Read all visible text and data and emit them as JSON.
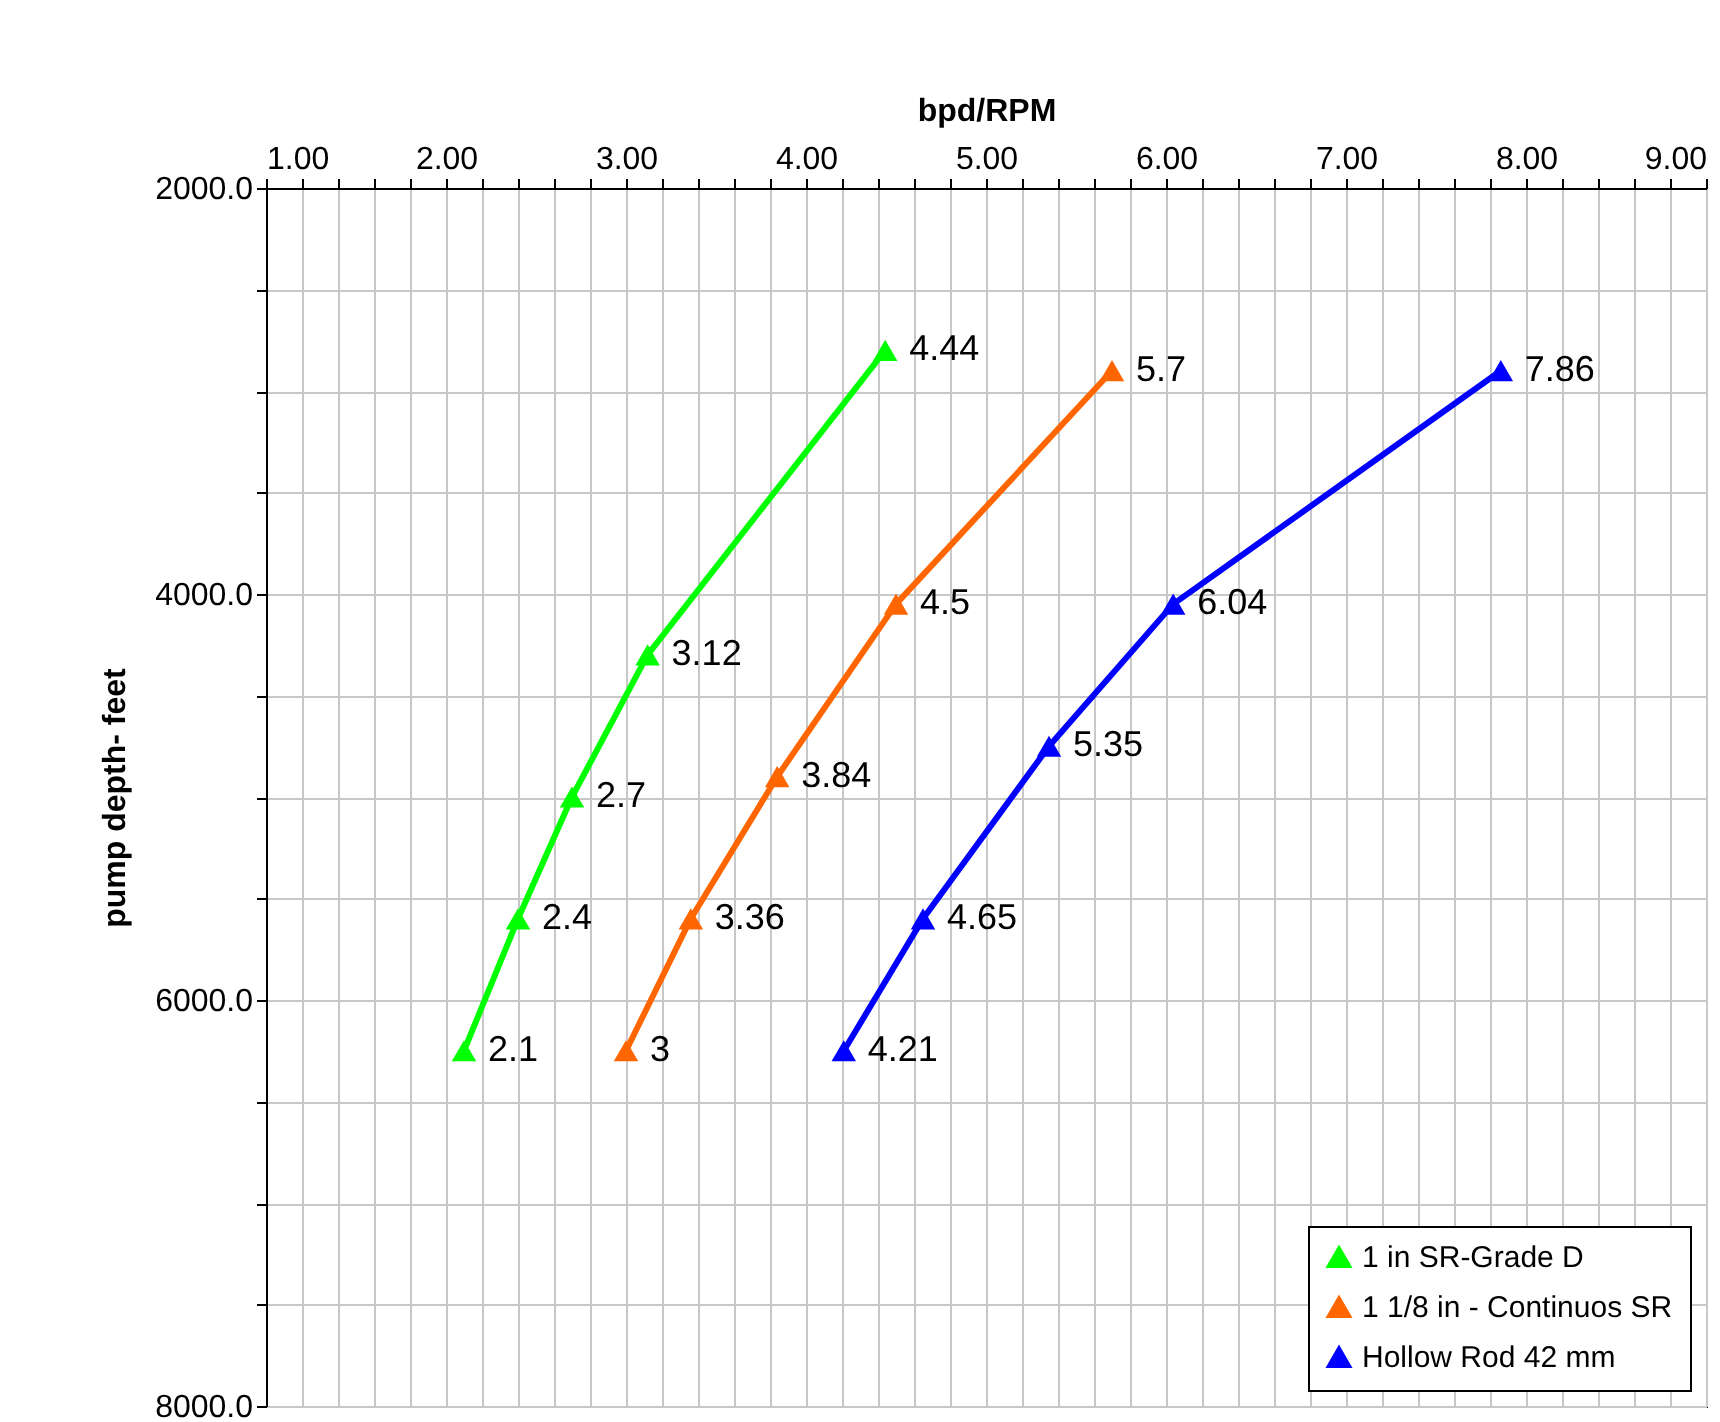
{
  "chart_data": {
    "type": "line",
    "xlabel": "bpd/RPM",
    "ylabel": "pump depth- feet",
    "xlim": [
      1,
      9
    ],
    "xticks": [
      {
        "value": 1,
        "label": "1.00"
      },
      {
        "value": 1.2,
        "label": null
      },
      {
        "value": 1.4,
        "label": null
      },
      {
        "value": 1.6,
        "label": null
      },
      {
        "value": 1.8,
        "label": null
      },
      {
        "value": 2,
        "label": "2.00"
      },
      {
        "value": 2.2,
        "label": null
      },
      {
        "value": 2.4,
        "label": null
      },
      {
        "value": 2.6,
        "label": null
      },
      {
        "value": 2.8,
        "label": null
      },
      {
        "value": 3,
        "label": "3.00"
      },
      {
        "value": 3.2,
        "label": null
      },
      {
        "value": 3.4,
        "label": null
      },
      {
        "value": 3.6,
        "label": null
      },
      {
        "value": 3.8,
        "label": null
      },
      {
        "value": 4,
        "label": "4.00"
      },
      {
        "value": 4.2,
        "label": null
      },
      {
        "value": 4.4,
        "label": null
      },
      {
        "value": 4.6,
        "label": null
      },
      {
        "value": 4.8,
        "label": null
      },
      {
        "value": 5,
        "label": "5.00"
      },
      {
        "value": 5.2,
        "label": null
      },
      {
        "value": 5.4,
        "label": null
      },
      {
        "value": 5.6,
        "label": null
      },
      {
        "value": 5.8,
        "label": null
      },
      {
        "value": 6,
        "label": "6.00"
      },
      {
        "value": 6.2,
        "label": null
      },
      {
        "value": 6.4,
        "label": null
      },
      {
        "value": 6.6,
        "label": null
      },
      {
        "value": 6.8,
        "label": null
      },
      {
        "value": 7,
        "label": "7.00"
      },
      {
        "value": 7.2,
        "label": null
      },
      {
        "value": 7.4,
        "label": null
      },
      {
        "value": 7.6,
        "label": null
      },
      {
        "value": 7.8,
        "label": null
      },
      {
        "value": 8,
        "label": "8.00"
      },
      {
        "value": 8.2,
        "label": null
      },
      {
        "value": 8.4,
        "label": null
      },
      {
        "value": 8.6,
        "label": null
      },
      {
        "value": 8.8,
        "label": null
      },
      {
        "value": 9,
        "label": "9.00"
      }
    ],
    "ylim": [
      8000,
      2000
    ],
    "yticks": [
      {
        "value": 2000,
        "label": "2000.0"
      },
      {
        "value": 2500,
        "label": null
      },
      {
        "value": 3000,
        "label": null
      },
      {
        "value": 3500,
        "label": null
      },
      {
        "value": 4000,
        "label": "4000.0"
      },
      {
        "value": 4500,
        "label": null
      },
      {
        "value": 5000,
        "label": null
      },
      {
        "value": 5500,
        "label": null
      },
      {
        "value": 6000,
        "label": "6000.0"
      },
      {
        "value": 6500,
        "label": null
      },
      {
        "value": 7000,
        "label": null
      },
      {
        "value": 7500,
        "label": null
      },
      {
        "value": 8000,
        "label": "8000.0"
      }
    ],
    "grid": true,
    "legend": "bottom right",
    "marker": "triangle",
    "line_style": "solid",
    "series": [
      {
        "name": "1 in SR-Grade D",
        "color": "#00ff00",
        "x": [
          2.1,
          2.4,
          2.7,
          3.12,
          4.44
        ],
        "values": [
          6250,
          5600,
          5000,
          4300,
          2800
        ]
      },
      {
        "name": "1 1/8 in - Continuos SR",
        "color": "#ff6600",
        "x": [
          3,
          3.36,
          3.84,
          4.5,
          5.7
        ],
        "values": [
          6250,
          5600,
          4900,
          4050,
          2900
        ]
      },
      {
        "name": "Hollow  Rod 42 mm",
        "color": "#0000ff",
        "x": [
          4.21,
          4.65,
          5.35,
          6.04,
          7.86
        ],
        "values": [
          6250,
          5600,
          4750,
          4050,
          2900
        ]
      }
    ],
    "annotations": [
      {
        "text": "2.1",
        "x": 2.1,
        "y": 6250
      },
      {
        "text": "2.4",
        "x": 2.4,
        "y": 5600
      },
      {
        "text": "2.7",
        "x": 2.7,
        "y": 5000
      },
      {
        "text": "3.12",
        "x": 3.12,
        "y": 4300
      },
      {
        "text": "4.44",
        "x": 4.44,
        "y": 2800
      },
      {
        "text": "3",
        "x": 3,
        "y": 6250
      },
      {
        "text": "3.36",
        "x": 3.36,
        "y": 5600
      },
      {
        "text": "3.84",
        "x": 3.84,
        "y": 4900
      },
      {
        "text": "4.5",
        "x": 4.5,
        "y": 4050
      },
      {
        "text": "5.7",
        "x": 5.7,
        "y": 2900
      },
      {
        "text": "4.21",
        "x": 4.21,
        "y": 6250
      },
      {
        "text": "4.65",
        "x": 4.65,
        "y": 5600
      },
      {
        "text": "5.35",
        "x": 5.35,
        "y": 4750
      },
      {
        "text": "6.04",
        "x": 6.04,
        "y": 4050
      },
      {
        "text": "7.86",
        "x": 7.86,
        "y": 2900
      }
    ]
  }
}
